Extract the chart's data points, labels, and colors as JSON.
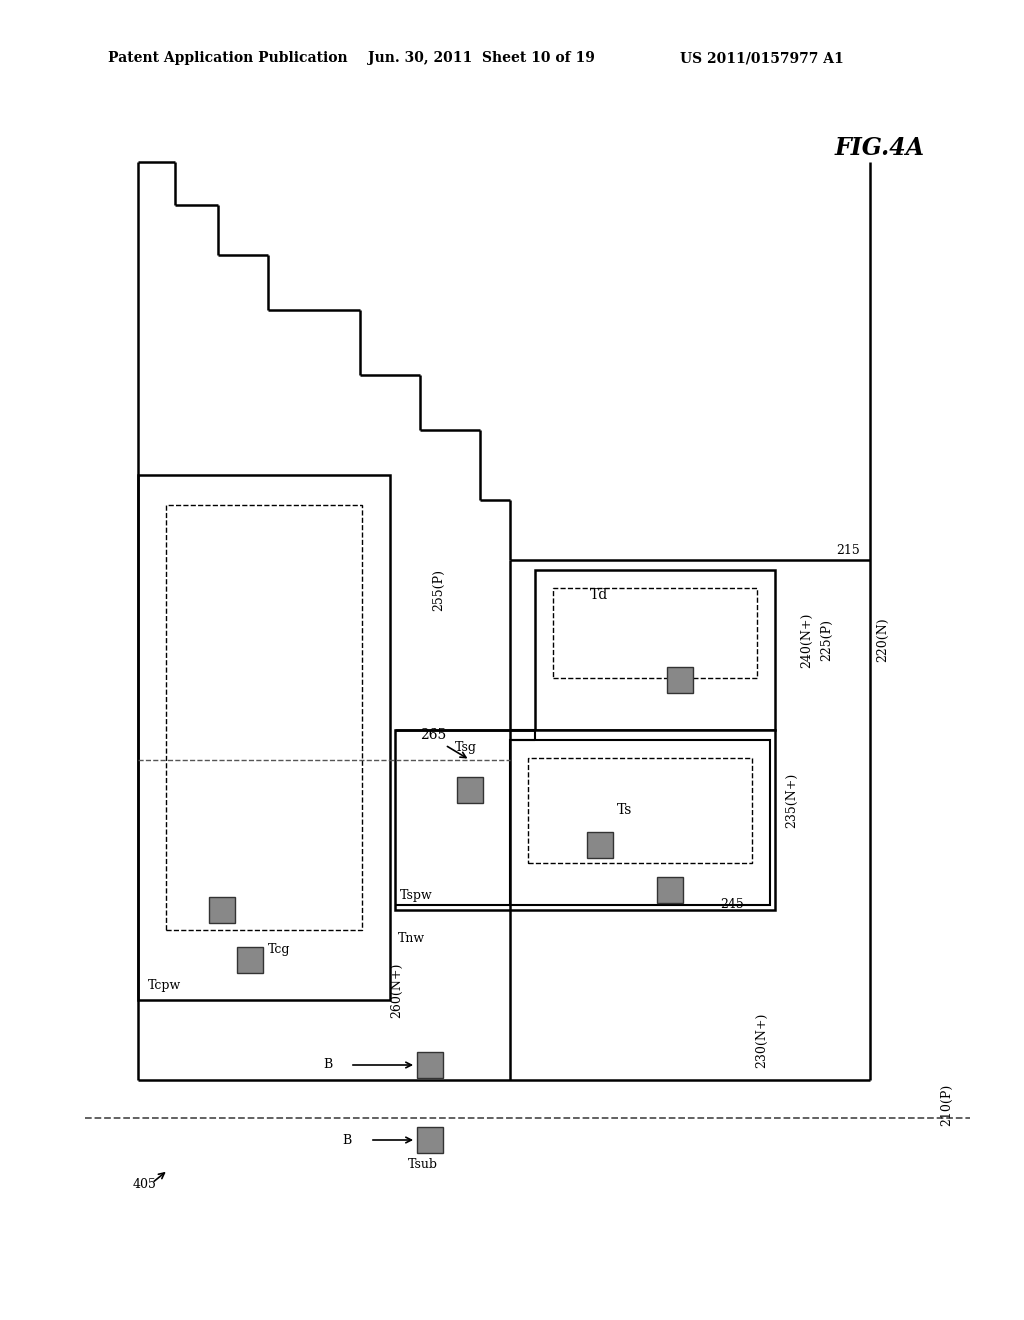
{
  "bg": "#ffffff",
  "lc": "#000000",
  "gc": "#888888",
  "header_left": "Patent Application Publication",
  "header_mid": "Jun. 30, 2011  Sheet 10 of 19",
  "header_right": "US 2011/0157977 A1",
  "fig_label": "FIG.4A"
}
